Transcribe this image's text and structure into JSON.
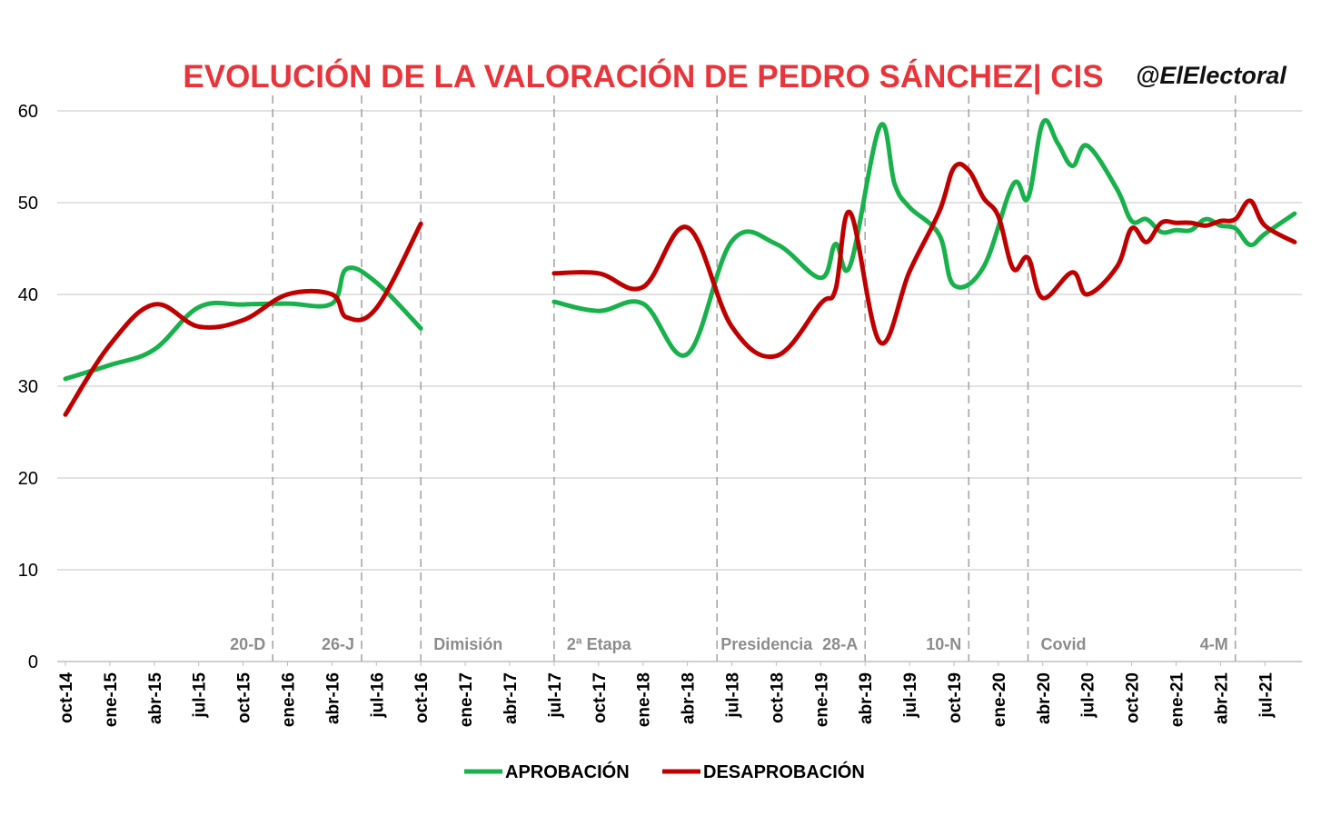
{
  "header": {
    "title": "EVOLUCIÓN DE LA VALORACIÓN DE PEDRO SÁNCHEZ| CIS",
    "brand": "@ElElectoral"
  },
  "colors": {
    "title": "#e8353b",
    "approval": "#18b14c",
    "disapproval": "#c00000",
    "grid": "#d9d9d9",
    "event_line": "#a6a6a6",
    "event_label": "#8c8c8c"
  },
  "chart_data": {
    "type": "line",
    "title": "EVOLUCIÓN DE LA VALORACIÓN DE PEDRO SÁNCHEZ| CIS",
    "ylim": [
      0,
      60
    ],
    "yticks": [
      0,
      10,
      20,
      30,
      40,
      50,
      60
    ],
    "grid": true,
    "legend_position": "bottom",
    "x_domain": [
      "2014-10",
      "2021-09"
    ],
    "x_ticks": [
      {
        "date": "2014-10",
        "label": "oct-14"
      },
      {
        "date": "2015-01",
        "label": "ene-15"
      },
      {
        "date": "2015-04",
        "label": "abr-15"
      },
      {
        "date": "2015-07",
        "label": "jul-15"
      },
      {
        "date": "2015-10",
        "label": "oct-15"
      },
      {
        "date": "2016-01",
        "label": "ene-16"
      },
      {
        "date": "2016-04",
        "label": "abr-16"
      },
      {
        "date": "2016-07",
        "label": "jul-16"
      },
      {
        "date": "2016-10",
        "label": "oct-16"
      },
      {
        "date": "2017-01",
        "label": "ene-17"
      },
      {
        "date": "2017-04",
        "label": "abr-17"
      },
      {
        "date": "2017-07",
        "label": "jul-17"
      },
      {
        "date": "2017-10",
        "label": "oct-17"
      },
      {
        "date": "2018-01",
        "label": "ene-18"
      },
      {
        "date": "2018-04",
        "label": "abr-18"
      },
      {
        "date": "2018-07",
        "label": "jul-18"
      },
      {
        "date": "2018-10",
        "label": "oct-18"
      },
      {
        "date": "2019-01",
        "label": "ene-19"
      },
      {
        "date": "2019-04",
        "label": "abr-19"
      },
      {
        "date": "2019-07",
        "label": "jul-19"
      },
      {
        "date": "2019-10",
        "label": "oct-19"
      },
      {
        "date": "2020-01",
        "label": "ene-20"
      },
      {
        "date": "2020-04",
        "label": "abr-20"
      },
      {
        "date": "2020-07",
        "label": "jul-20"
      },
      {
        "date": "2020-10",
        "label": "oct-20"
      },
      {
        "date": "2021-01",
        "label": "ene-21"
      },
      {
        "date": "2021-04",
        "label": "abr-21"
      },
      {
        "date": "2021-07",
        "label": "jul-21"
      }
    ],
    "events": [
      {
        "date": "2015-12",
        "label": "20-D"
      },
      {
        "date": "2016-06",
        "label": "26-J"
      },
      {
        "date": "2016-10",
        "label": "Dimisión"
      },
      {
        "date": "2017-07",
        "label": "2ª Etapa"
      },
      {
        "date": "2018-06",
        "label": "Presidencia"
      },
      {
        "date": "2019-04",
        "label": "28-A"
      },
      {
        "date": "2019-11",
        "label": "10-N"
      },
      {
        "date": "2020-03",
        "label": "Covid"
      },
      {
        "date": "2021-05",
        "label": "4-M"
      }
    ],
    "series": [
      {
        "name": "APROBACIÓN",
        "segments": [
          [
            [
              "2014-10",
              30.8
            ],
            [
              "2015-01",
              32.3
            ],
            [
              "2015-04",
              34.0
            ],
            [
              "2015-07",
              38.6
            ],
            [
              "2015-10",
              38.9
            ],
            [
              "2016-01",
              39.0
            ],
            [
              "2016-04",
              39.0
            ],
            [
              "2016-05",
              42.8
            ],
            [
              "2016-07",
              41.3
            ],
            [
              "2016-10",
              36.3
            ]
          ],
          [
            [
              "2017-07",
              39.2
            ],
            [
              "2017-10",
              38.2
            ],
            [
              "2018-01",
              39.0
            ],
            [
              "2018-04",
              33.5
            ],
            [
              "2018-07",
              45.8
            ],
            [
              "2018-10",
              45.5
            ],
            [
              "2019-01",
              41.8
            ],
            [
              "2019-02",
              45.5
            ],
            [
              "2019-03",
              43.2
            ],
            [
              "2019-05",
              58.3
            ],
            [
              "2019-06",
              52.0
            ],
            [
              "2019-07",
              49.5
            ],
            [
              "2019-09",
              46.5
            ],
            [
              "2019-10",
              41.0
            ],
            [
              "2019-12",
              43.0
            ],
            [
              "2020-02",
              52.0
            ],
            [
              "2020-03",
              50.5
            ],
            [
              "2020-04",
              58.7
            ],
            [
              "2020-05",
              56.5
            ],
            [
              "2020-06",
              54.0
            ],
            [
              "2020-07",
              56.2
            ],
            [
              "2020-09",
              51.5
            ],
            [
              "2020-10",
              48.0
            ],
            [
              "2020-11",
              48.2
            ],
            [
              "2020-12",
              46.8
            ],
            [
              "2021-01",
              47.0
            ],
            [
              "2021-02",
              47.0
            ],
            [
              "2021-03",
              48.2
            ],
            [
              "2021-04",
              47.5
            ],
            [
              "2021-05",
              47.2
            ],
            [
              "2021-06",
              45.4
            ],
            [
              "2021-07",
              46.6
            ],
            [
              "2021-09",
              48.8
            ]
          ]
        ]
      },
      {
        "name": "DESAPROBACIÓN",
        "segments": [
          [
            [
              "2014-10",
              26.9
            ],
            [
              "2015-01",
              34.5
            ],
            [
              "2015-04",
              38.9
            ],
            [
              "2015-07",
              36.5
            ],
            [
              "2015-10",
              37.2
            ],
            [
              "2016-01",
              40.0
            ],
            [
              "2016-04",
              40.0
            ],
            [
              "2016-05",
              37.5
            ],
            [
              "2016-07",
              38.5
            ],
            [
              "2016-10",
              47.7
            ]
          ],
          [
            [
              "2017-07",
              42.3
            ],
            [
              "2017-10",
              42.3
            ],
            [
              "2018-01",
              40.8
            ],
            [
              "2018-04",
              47.3
            ],
            [
              "2018-07",
              36.5
            ],
            [
              "2018-10",
              33.3
            ],
            [
              "2019-01",
              39.0
            ],
            [
              "2019-02",
              40.5
            ],
            [
              "2019-03",
              48.9
            ],
            [
              "2019-05",
              34.8
            ],
            [
              "2019-07",
              42.5
            ],
            [
              "2019-09",
              49.0
            ],
            [
              "2019-10",
              53.8
            ],
            [
              "2019-11",
              53.5
            ],
            [
              "2019-12",
              50.5
            ],
            [
              "2020-01",
              48.5
            ],
            [
              "2020-02",
              42.8
            ],
            [
              "2020-03",
              44.0
            ],
            [
              "2020-04",
              39.6
            ],
            [
              "2020-06",
              42.4
            ],
            [
              "2020-07",
              40.0
            ],
            [
              "2020-09",
              43.0
            ],
            [
              "2020-10",
              47.2
            ],
            [
              "2020-11",
              45.7
            ],
            [
              "2020-12",
              47.8
            ],
            [
              "2021-01",
              47.8
            ],
            [
              "2021-02",
              47.8
            ],
            [
              "2021-03",
              47.5
            ],
            [
              "2021-04",
              48.0
            ],
            [
              "2021-05",
              48.2
            ],
            [
              "2021-06",
              50.2
            ],
            [
              "2021-07",
              47.5
            ],
            [
              "2021-09",
              45.7
            ]
          ]
        ]
      }
    ]
  }
}
